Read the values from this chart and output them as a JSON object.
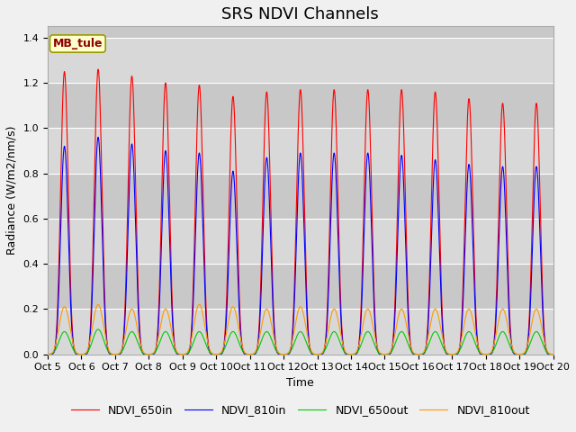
{
  "title": "SRS NDVI Channels",
  "xlabel": "Time",
  "ylabel": "Radiance (W/m2/nm/s)",
  "ylim": [
    0,
    1.45
  ],
  "annotation_text": "MB_tule",
  "legend_labels": [
    "NDVI_650in",
    "NDVI_810in",
    "NDVI_650out",
    "NDVI_810out"
  ],
  "colors": [
    "#ff0000",
    "#0000ff",
    "#00cc00",
    "#ff9900"
  ],
  "background_color": "#e8e8e8",
  "plot_bg_color": "#d8d8d8",
  "x_tick_labels": [
    "Oct 5",
    "Oct 6",
    "Oct 7",
    "Oct 8",
    "Oct 9",
    "Oct 10",
    "Oct 11",
    "Oct 12",
    "Oct 13",
    "Oct 14",
    "Oct 15",
    "Oct 16",
    "Oct 17",
    "Oct 18",
    "Oct 19",
    "Oct 20"
  ],
  "peak_650in": [
    1.25,
    1.26,
    1.23,
    1.2,
    1.19,
    1.14,
    1.16,
    1.17,
    1.17,
    1.17,
    1.17,
    1.16,
    1.13,
    1.11
  ],
  "peak_810in": [
    0.92,
    0.96,
    0.93,
    0.9,
    0.89,
    0.81,
    0.87,
    0.89,
    0.89,
    0.89,
    0.88,
    0.86,
    0.84,
    0.83
  ],
  "peak_650out": [
    0.1,
    0.11,
    0.1,
    0.1,
    0.1,
    0.1,
    0.1,
    0.1,
    0.1,
    0.1,
    0.1,
    0.1,
    0.1,
    0.1
  ],
  "peak_810out": [
    0.21,
    0.22,
    0.2,
    0.2,
    0.22,
    0.21,
    0.2,
    0.21,
    0.2,
    0.2,
    0.2,
    0.2,
    0.2,
    0.2
  ],
  "points_per_day": 200,
  "peak_sharpness_in": 8,
  "peak_sharpness_out": 4,
  "title_fontsize": 13,
  "tick_fontsize": 8,
  "label_fontsize": 9,
  "legend_fontsize": 9,
  "linewidth": 0.8
}
